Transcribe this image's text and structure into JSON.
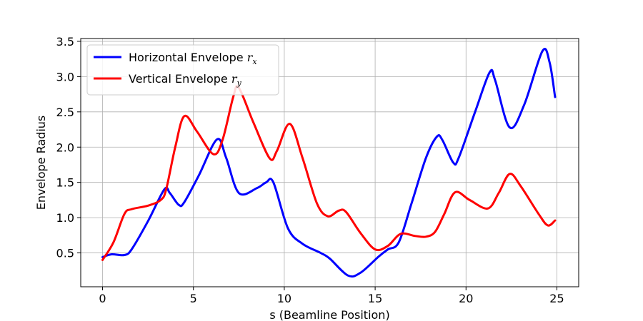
{
  "chart_data": {
    "type": "line",
    "title": "",
    "xlabel": "s (Beamline Position)",
    "ylabel": "Envelope Radius",
    "xlim": [
      -1.2,
      26.2
    ],
    "ylim": [
      0.02,
      3.54
    ],
    "xticks": [
      0,
      5,
      10,
      15,
      20,
      25
    ],
    "yticks": [
      0.5,
      1.0,
      1.5,
      2.0,
      2.5,
      3.0,
      3.5
    ],
    "xtick_labels": [
      "0",
      "5",
      "10",
      "15",
      "20",
      "25"
    ],
    "ytick_labels": [
      "0.5",
      "1.0",
      "1.5",
      "2.0",
      "2.5",
      "3.0",
      "3.5"
    ],
    "grid": true,
    "legend_position": "top-left",
    "series": [
      {
        "name": "Horizontal Envelope r_x",
        "legend_text": "Horizontal Envelope",
        "legend_symbol": "r",
        "legend_subscript": "x",
        "color": "#0000ff",
        "x": [
          0,
          0.5,
          1.2,
          1.6,
          2.5,
          3.4,
          3.7,
          4.2,
          4.5,
          5.3,
          6.3,
          6.8,
          7.5,
          8.5,
          9.0,
          9.4,
          10.2,
          11.0,
          12.0,
          12.5,
          13.5,
          14.2,
          15.2,
          15.7,
          16.3,
          17.0,
          17.8,
          18.4,
          18.7,
          19.3,
          19.6,
          20.5,
          21.3,
          21.6,
          22.4,
          23.2,
          24.2,
          24.6,
          24.9
        ],
        "y": [
          0.44,
          0.48,
          0.47,
          0.55,
          0.95,
          1.4,
          1.35,
          1.18,
          1.22,
          1.6,
          2.11,
          1.85,
          1.35,
          1.42,
          1.5,
          1.5,
          0.85,
          0.63,
          0.5,
          0.42,
          0.18,
          0.22,
          0.45,
          0.55,
          0.65,
          1.2,
          1.85,
          2.15,
          2.1,
          1.78,
          1.85,
          2.5,
          3.06,
          2.95,
          2.28,
          2.6,
          3.36,
          3.2,
          2.71
        ]
      },
      {
        "name": "Vertical Envelope r_y",
        "legend_text": "Vertical Envelope",
        "legend_symbol": "r",
        "legend_subscript": "y",
        "color": "#ff0000",
        "x": [
          0,
          0.6,
          1.2,
          1.6,
          2.5,
          3.2,
          3.5,
          4.0,
          4.5,
          5.2,
          6.1,
          6.6,
          7.2,
          7.5,
          8.3,
          9.2,
          9.6,
          10.3,
          11.0,
          11.8,
          12.4,
          13.0,
          13.4,
          14.2,
          15.0,
          15.7,
          16.4,
          17.2,
          17.8,
          18.3,
          18.8,
          19.4,
          20.2,
          21.2,
          21.8,
          22.4,
          23.0,
          24.0,
          24.5,
          24.9
        ],
        "y": [
          0.4,
          0.65,
          1.05,
          1.12,
          1.17,
          1.25,
          1.4,
          2.0,
          2.44,
          2.22,
          1.9,
          2.1,
          2.72,
          2.84,
          2.35,
          1.84,
          1.95,
          2.33,
          1.85,
          1.2,
          1.02,
          1.1,
          1.08,
          0.78,
          0.55,
          0.6,
          0.77,
          0.74,
          0.73,
          0.8,
          1.05,
          1.36,
          1.25,
          1.13,
          1.35,
          1.62,
          1.45,
          1.05,
          0.89,
          0.96
        ]
      }
    ]
  }
}
